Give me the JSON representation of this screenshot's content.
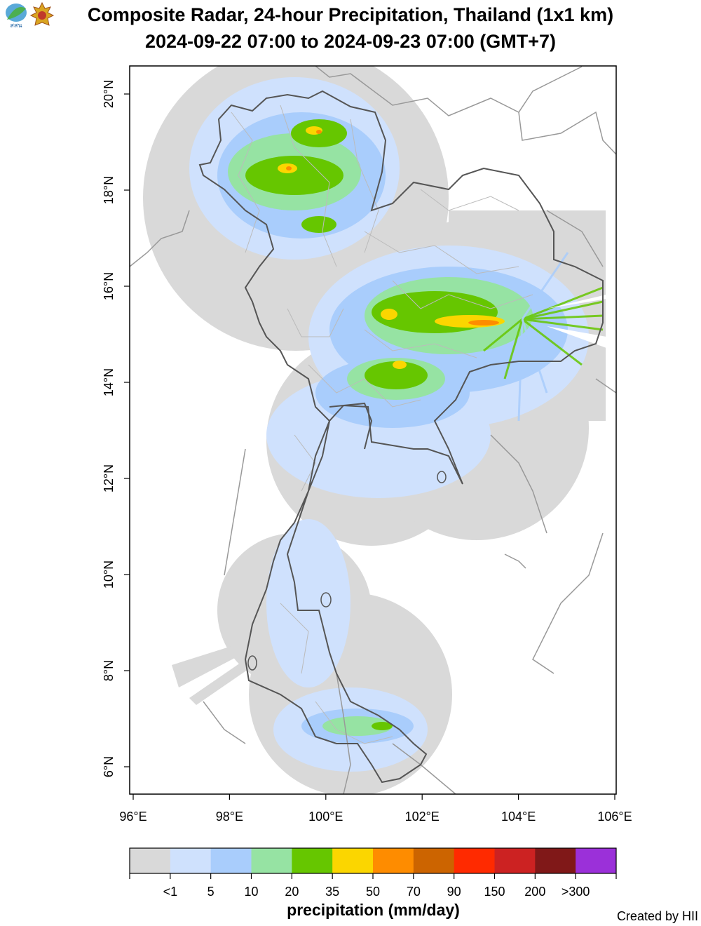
{
  "header": {
    "title_line1": "Composite Radar, 24-hour Precipitation, Thailand (1x1 km)",
    "title_line2": "2024-09-22 07:00 to 2024-09-23 07:00 (GMT+7)",
    "logo1_text": "สสน"
  },
  "map": {
    "lon_range": [
      96,
      106
    ],
    "lat_range": [
      5.5,
      20.5
    ],
    "lon_ticks": [
      "96°E",
      "98°E",
      "100°E",
      "102°E",
      "104°E",
      "106°E"
    ],
    "lat_ticks": [
      "6°N",
      "8°N",
      "10°N",
      "12°N",
      "14°N",
      "16°N",
      "18°N",
      "20°N"
    ],
    "colors": {
      "coverage": "#d9d9d9",
      "light_blue": "#cfe1fd",
      "blue": "#a9cdfc",
      "light_green": "#96e3a3",
      "green": "#66c600",
      "yellow": "#fbd600",
      "orange": "#fe8c00",
      "border_country": "#555555",
      "border_province": "#bbbbbb"
    }
  },
  "legend": {
    "title": "precipitation (mm/day)",
    "labels": [
      "<1",
      "5",
      "10",
      "20",
      "35",
      "50",
      "70",
      "90",
      "150",
      "200",
      ">300"
    ],
    "colors": [
      "#d9d9d9",
      "#cfe1fd",
      "#a9cdfc",
      "#96e3a3",
      "#66c600",
      "#fbd600",
      "#fe8c00",
      "#cc6400",
      "#ff2a00",
      "#cc2222",
      "#801818",
      "#9b30d9"
    ]
  },
  "credit": "Created by HII"
}
